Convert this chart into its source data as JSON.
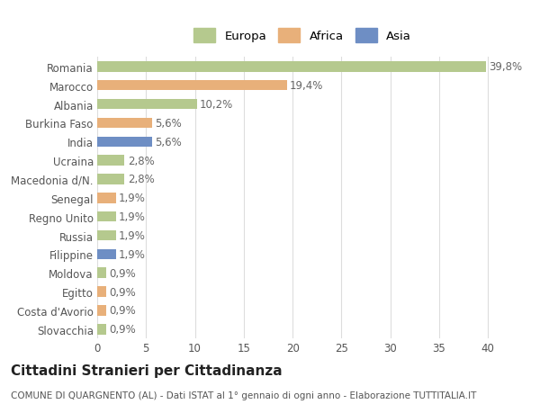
{
  "categories": [
    "Romania",
    "Marocco",
    "Albania",
    "Burkina Faso",
    "India",
    "Ucraina",
    "Macedonia d/N.",
    "Senegal",
    "Regno Unito",
    "Russia",
    "Filippine",
    "Moldova",
    "Egitto",
    "Costa d'Avorio",
    "Slovacchia"
  ],
  "values": [
    39.8,
    19.4,
    10.2,
    5.6,
    5.6,
    2.8,
    2.8,
    1.9,
    1.9,
    1.9,
    1.9,
    0.9,
    0.9,
    0.9,
    0.9
  ],
  "labels": [
    "39,8%",
    "19,4%",
    "10,2%",
    "5,6%",
    "5,6%",
    "2,8%",
    "2,8%",
    "1,9%",
    "1,9%",
    "1,9%",
    "1,9%",
    "0,9%",
    "0,9%",
    "0,9%",
    "0,9%"
  ],
  "continents": [
    "Europa",
    "Africa",
    "Europa",
    "Africa",
    "Asia",
    "Europa",
    "Europa",
    "Africa",
    "Europa",
    "Europa",
    "Asia",
    "Europa",
    "Africa",
    "Africa",
    "Europa"
  ],
  "colors": {
    "Europa": "#b5c98e",
    "Africa": "#e8b07a",
    "Asia": "#6e8ec4"
  },
  "legend_labels": [
    "Europa",
    "Africa",
    "Asia"
  ],
  "legend_colors": [
    "#b5c98e",
    "#e8b07a",
    "#6e8ec4"
  ],
  "title": "Cittadini Stranieri per Cittadinanza",
  "subtitle": "COMUNE DI QUARGNENTO (AL) - Dati ISTAT al 1° gennaio di ogni anno - Elaborazione TUTTITALIA.IT",
  "xlim": [
    0,
    42
  ],
  "xticks": [
    0,
    5,
    10,
    15,
    20,
    25,
    30,
    35,
    40
  ],
  "background_color": "#ffffff",
  "grid_color": "#dddddd",
  "bar_height": 0.55,
  "label_fontsize": 8.5,
  "tick_fontsize": 8.5,
  "title_fontsize": 11,
  "subtitle_fontsize": 7.5
}
